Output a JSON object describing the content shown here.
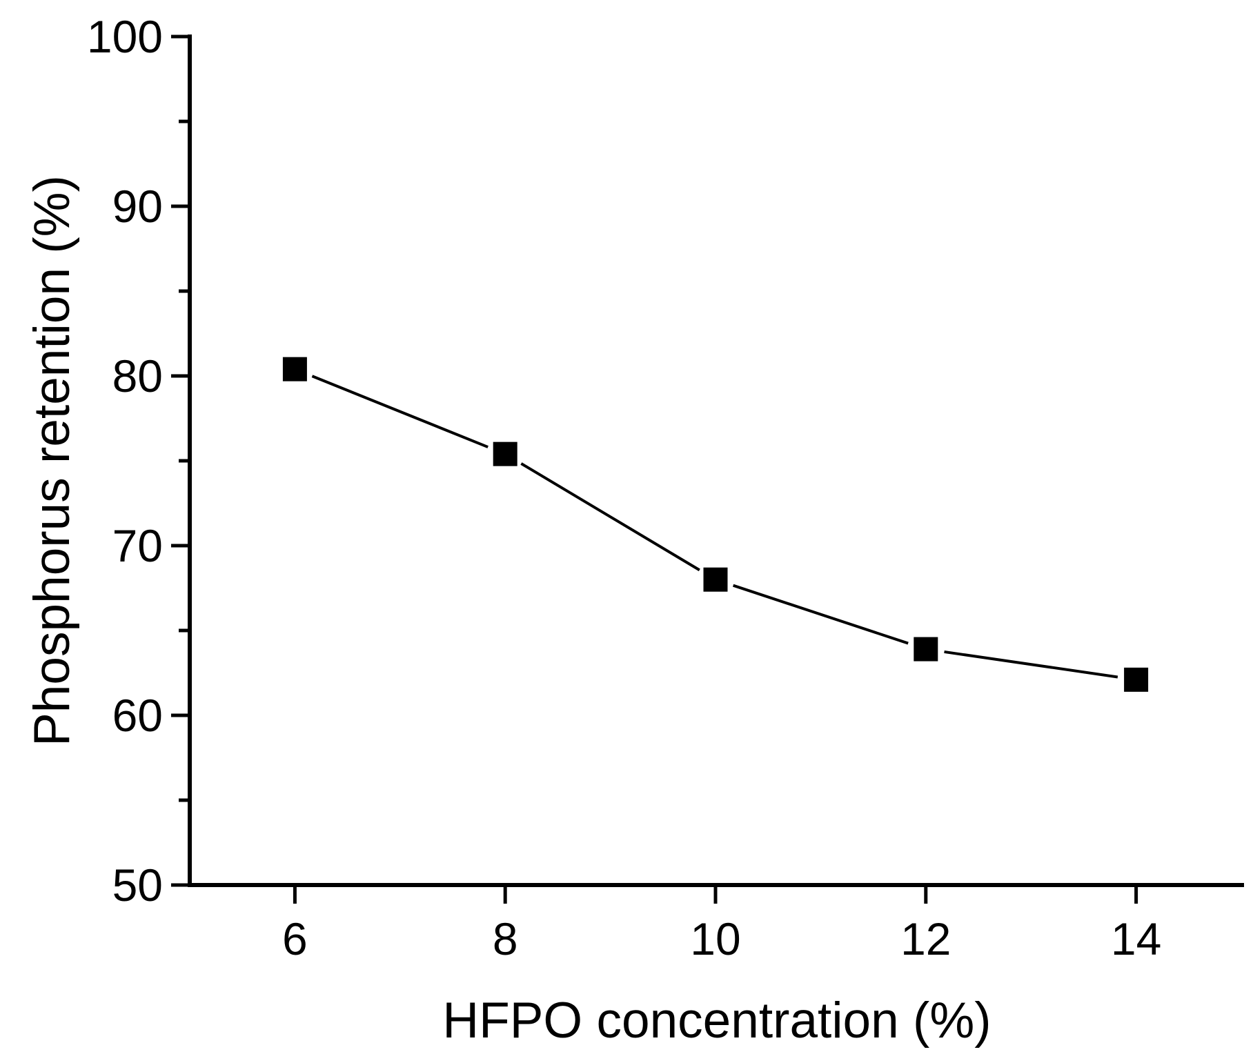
{
  "chart_data": {
    "type": "line",
    "title": "",
    "xlabel": "HFPO concentration (%)",
    "ylabel": "Phosphorus retention (%)",
    "x": [
      6,
      8,
      10,
      12,
      14
    ],
    "series": [
      {
        "name": "Phosphorus retention",
        "values": [
          80.4,
          75.4,
          68.0,
          63.9,
          62.1
        ],
        "marker": "filled-square",
        "line_style": "solid"
      }
    ],
    "xlim": [
      5,
      15.03
    ],
    "ylim": [
      50,
      100
    ],
    "xticks": [
      6,
      8,
      10,
      12,
      14
    ],
    "xtick_labels": [
      "6",
      "8",
      "10",
      "12",
      "14"
    ],
    "yticks_major": [
      50,
      60,
      70,
      80,
      90,
      100
    ],
    "ytick_labels": [
      "50",
      "60",
      "70",
      "80",
      "90",
      "100"
    ],
    "yticks_minor": [
      55,
      65,
      75,
      85,
      95
    ],
    "grid": false,
    "legend": "none",
    "colors": {
      "line": "#000000",
      "marker": "#000000",
      "axis": "#000000",
      "background": "#ffffff"
    }
  }
}
